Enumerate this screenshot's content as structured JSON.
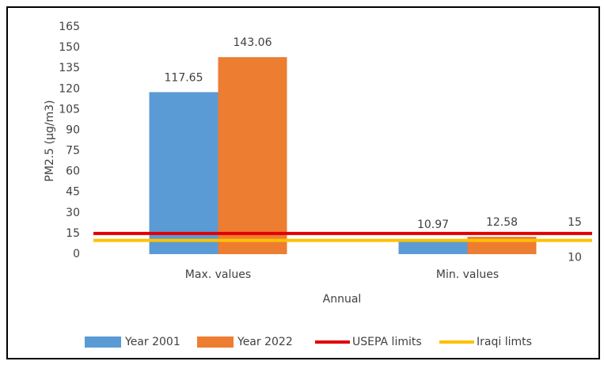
{
  "chart_data": {
    "type": "bar",
    "categories": [
      "Max. values",
      "Min. values"
    ],
    "series": [
      {
        "name": "Year 2001",
        "type": "bar",
        "color": "#5b9bd5",
        "values": [
          117.65,
          10.97
        ]
      },
      {
        "name": "Year 2022",
        "type": "bar",
        "color": "#ed7d31",
        "values": [
          143.06,
          12.58
        ]
      },
      {
        "name": "USEPA limits",
        "type": "line",
        "color": "#e00000",
        "values": [
          15,
          15
        ]
      },
      {
        "name": "Iraqi limts",
        "type": "line",
        "color": "#ffc000",
        "values": [
          10,
          10
        ]
      }
    ],
    "y_label": "PM2.5 (µg/m3)",
    "x_label": "Annual",
    "ylim": [
      0,
      165
    ],
    "yticks": [
      0,
      15,
      30,
      45,
      60,
      75,
      90,
      105,
      120,
      135,
      150,
      165
    ],
    "grid": false,
    "legend": "bottom"
  }
}
